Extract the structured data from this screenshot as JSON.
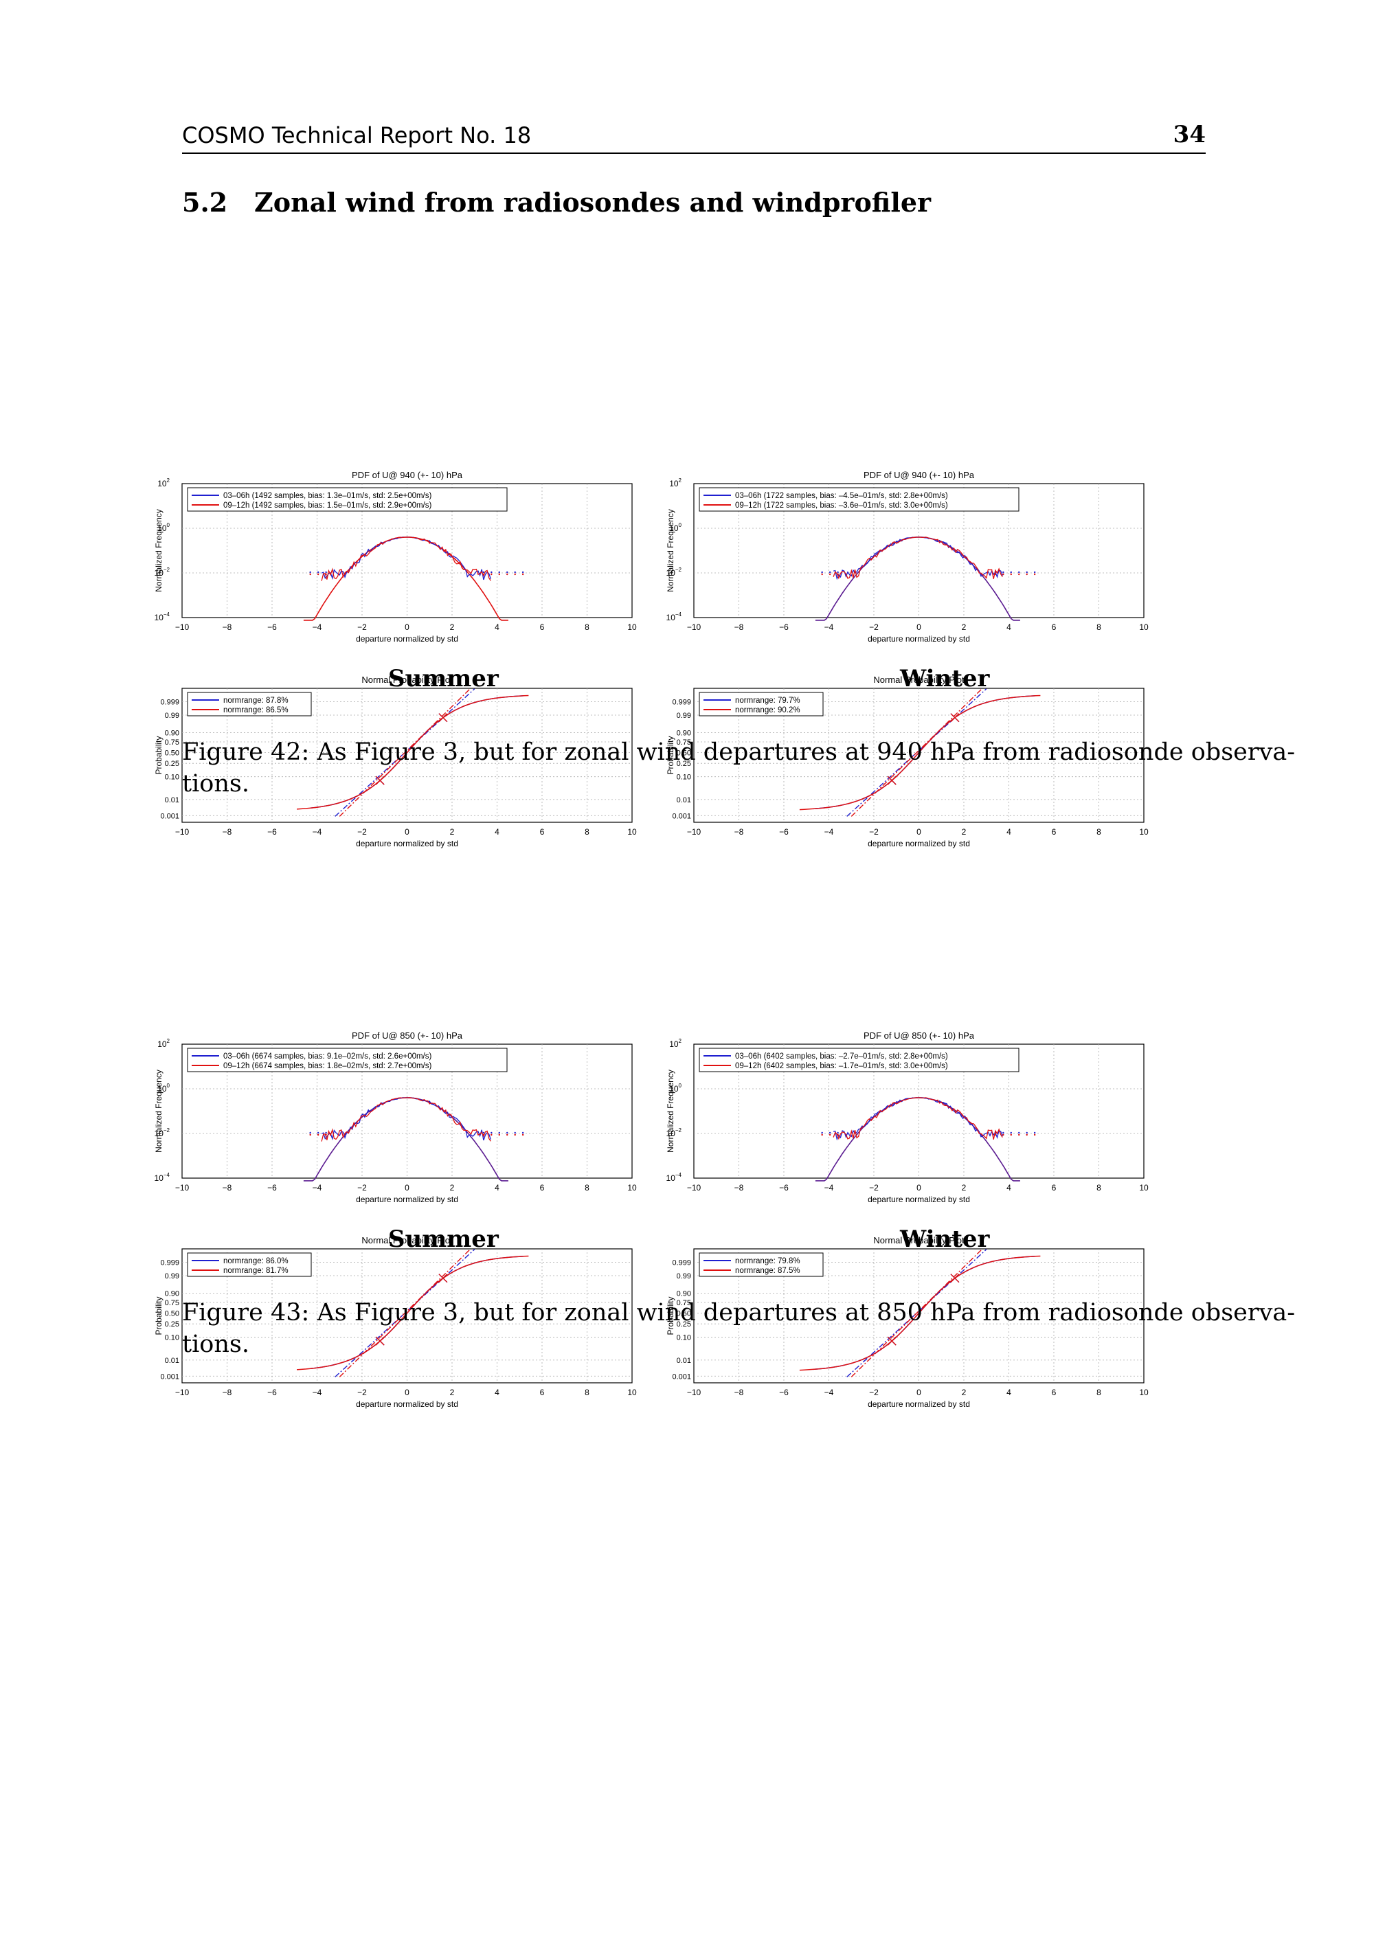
{
  "header": {
    "left": "COSMO Technical Report No. 18",
    "page_number": "34"
  },
  "section": {
    "number": "5.2",
    "title": "Zonal wind from radiosondes and windprofiler"
  },
  "figures": [
    {
      "caption_line1": "Figure 42: As Figure 3, but for zonal wind departures at 940 hPa from radiosonde observa-",
      "caption_line2": "tions.",
      "panels": [
        {
          "season": "Summer",
          "pdf": {
            "title": "PDF of U@ 940 (+- 10) hPa",
            "legend": [
              "03–06h (1492 samples, bias: 1.3e–01m/s, std: 2.5e+00m/s)",
              "09–12h (1492 samples, bias: 1.5e–01m/s, std: 2.9e+00m/s)"
            ]
          },
          "npp": {
            "title": "Normal Probability Plot",
            "legend": [
              "normrange: 87.8%",
              "normrange: 86.5%"
            ]
          }
        },
        {
          "season": "Winter",
          "pdf": {
            "title": "PDF of U@ 940 (+- 10) hPa",
            "legend": [
              "03–06h (1722 samples, bias: –4.5e–01m/s, std: 2.8e+00m/s)",
              "09–12h (1722 samples, bias: –3.6e–01m/s, std: 3.0e+00m/s)"
            ]
          },
          "npp": {
            "title": "Normal Probability Plot",
            "legend": [
              "normrange: 79.7%",
              "normrange: 90.2%"
            ]
          }
        }
      ]
    },
    {
      "caption_line1": "Figure 43: As Figure 3, but for zonal wind departures at 850 hPa from radiosonde observa-",
      "caption_line2": "tions.",
      "panels": [
        {
          "season": "Summer",
          "pdf": {
            "title": "PDF of U@ 850 (+- 10) hPa",
            "legend": [
              "03–06h (6674 samples, bias: 9.1e–02m/s, std: 2.6e+00m/s)",
              "09–12h (6674 samples, bias: 1.8e–02m/s, std: 2.7e+00m/s)"
            ]
          },
          "npp": {
            "title": "Normal Probability Plot",
            "legend": [
              "normrange: 86.0%",
              "normrange: 81.7%"
            ]
          }
        },
        {
          "season": "Winter",
          "pdf": {
            "title": "PDF of U@ 850 (+- 10) hPa",
            "legend": [
              "03–06h (6402 samples, bias: –2.7e–01m/s, std: 2.8e+00m/s)",
              "09–12h (6402 samples, bias: –1.7e–01m/s, std: 3.0e+00m/s)"
            ]
          },
          "npp": {
            "title": "Normal Probability Plot",
            "legend": [
              "normrange: 79.8%",
              "normrange: 87.5%"
            ]
          }
        }
      ]
    }
  ],
  "axes": {
    "xlabel": "departure normalized by std",
    "pdf_ylabel": "Normalized Frequency",
    "npp_ylabel": "Probability",
    "x_ticks": [
      "−10",
      "−8",
      "−6",
      "−4",
      "−2",
      "0",
      "2",
      "4",
      "6",
      "8",
      "10"
    ],
    "pdf_yticks": [
      {
        "base": "10",
        "exp": "2"
      },
      {
        "base": "10",
        "exp": "0"
      },
      {
        "base": "10",
        "exp": "−2"
      },
      {
        "base": "10",
        "exp": "−4"
      }
    ],
    "npp_yticks": [
      "0.999",
      "0.99",
      "0.90",
      "0.75",
      "0.50",
      "0.25",
      "0.10",
      "0.01",
      "0.001"
    ]
  },
  "colors": {
    "series1": "#1f1fd0",
    "series2": "#e01010"
  },
  "chart_data": [
    {
      "type": "line",
      "title": "PDF of U@ 940 (+- 10) hPa",
      "panel": "Summer",
      "xlabel": "departure normalized by std",
      "ylabel": "Normalized Frequency",
      "xlim": [
        -10,
        10
      ],
      "ylim": [
        0.0001,
        100
      ],
      "yscale": "log",
      "series": [
        {
          "name": "03–06h (1492 samples, bias: 1.3e–01m/s, std: 2.5e+00m/s)"
        },
        {
          "name": "09–12h (1492 samples, bias: 1.5e–01m/s, std: 2.9e+00m/s)"
        }
      ]
    },
    {
      "type": "line",
      "title": "PDF of U@ 940 (+- 10) hPa",
      "panel": "Winter",
      "xlabel": "departure normalized by std",
      "ylabel": "Normalized Frequency",
      "xlim": [
        -10,
        10
      ],
      "ylim": [
        0.0001,
        100
      ],
      "yscale": "log",
      "series": [
        {
          "name": "03–06h (1722 samples, bias: –4.5e–01m/s, std: 2.8e+00m/s)"
        },
        {
          "name": "09–12h (1722 samples, bias: –3.6e–01m/s, std: 3.0e+00m/s)"
        }
      ]
    },
    {
      "type": "line",
      "title": "PDF of U@ 850 (+- 10) hPa",
      "panel": "Summer",
      "xlabel": "departure normalized by std",
      "ylabel": "Normalized Frequency",
      "xlim": [
        -10,
        10
      ],
      "ylim": [
        0.0001,
        100
      ],
      "yscale": "log",
      "series": [
        {
          "name": "03–06h (6674 samples, bias: 9.1e–02m/s, std: 2.6e+00m/s)"
        },
        {
          "name": "09–12h (6674 samples, bias: 1.8e–02m/s, std: 2.7e+00m/s)"
        }
      ]
    },
    {
      "type": "line",
      "title": "PDF of U@ 850 (+- 10) hPa",
      "panel": "Winter",
      "xlabel": "departure normalized by std",
      "ylabel": "Normalized Frequency",
      "xlim": [
        -10,
        10
      ],
      "ylim": [
        0.0001,
        100
      ],
      "yscale": "log",
      "series": [
        {
          "name": "03–06h (6402 samples, bias: –2.7e–01m/s, std: 2.8e+00m/s)"
        },
        {
          "name": "09–12h (6402 samples, bias: –1.7e–01m/s, std: 3.0e+00m/s)"
        }
      ]
    },
    {
      "type": "line",
      "title": "Normal Probability Plot",
      "panel": "Summer 940 hPa",
      "xlabel": "departure normalized by std",
      "ylabel": "Probability",
      "xlim": [
        -10,
        10
      ],
      "ylim": [
        0.0005,
        0.9995
      ],
      "series": [
        {
          "name": "normrange: 87.8%"
        },
        {
          "name": "normrange: 86.5%"
        }
      ]
    },
    {
      "type": "line",
      "title": "Normal Probability Plot",
      "panel": "Winter 940 hPa",
      "xlabel": "departure normalized by std",
      "ylabel": "Probability",
      "xlim": [
        -10,
        10
      ],
      "ylim": [
        0.0005,
        0.9995
      ],
      "series": [
        {
          "name": "normrange: 79.7%"
        },
        {
          "name": "normrange: 90.2%"
        }
      ]
    },
    {
      "type": "line",
      "title": "Normal Probability Plot",
      "panel": "Summer 850 hPa",
      "xlabel": "departure normalized by std",
      "ylabel": "Probability",
      "xlim": [
        -10,
        10
      ],
      "ylim": [
        0.0005,
        0.9995
      ],
      "series": [
        {
          "name": "normrange: 86.0%"
        },
        {
          "name": "normrange: 81.7%"
        }
      ]
    },
    {
      "type": "line",
      "title": "Normal Probability Plot",
      "panel": "Winter 850 hPa",
      "xlabel": "departure normalized by std",
      "ylabel": "Probability",
      "xlim": [
        -10,
        10
      ],
      "ylim": [
        0.0005,
        0.9995
      ],
      "series": [
        {
          "name": "normrange: 79.8%"
        },
        {
          "name": "normrange: 87.5%"
        }
      ]
    }
  ]
}
